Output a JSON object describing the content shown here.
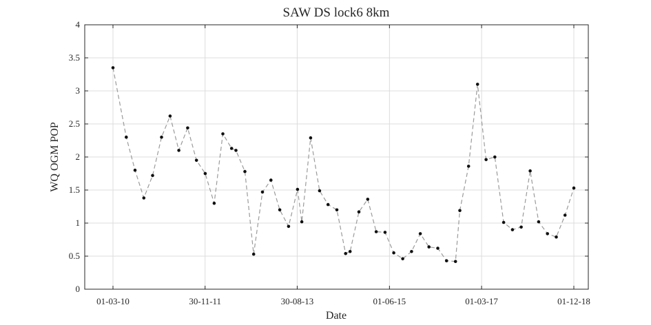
{
  "chart_data": {
    "type": "line",
    "title": "SAW DS lock6 8km",
    "xlabel": "Date",
    "ylabel": "WQ OGM POP",
    "xlim": [
      "01-03-10",
      "01-12-18"
    ],
    "ylim": [
      0,
      4
    ],
    "grid": true,
    "x_ticks": [
      "01-03-10",
      "30-11-11",
      "30-08-13",
      "01-06-15",
      "01-03-17",
      "01-12-18"
    ],
    "y_ticks": [
      "0",
      "0.5",
      "1",
      "1.5",
      "2",
      "2.5",
      "3",
      "3.5",
      "4"
    ],
    "marker_color": "#111111",
    "line_color": "#9a9a9a",
    "series": [
      {
        "x": [
          "01-03-10",
          "01-06-10",
          "01-08-10",
          "01-10-10",
          "01-12-10",
          "01-02-11",
          "01-04-11",
          "01-06-11",
          "01-08-11",
          "01-10-11",
          "01-12-11",
          "01-02-12",
          "01-04-12",
          "01-06-12",
          "01-07-12",
          "01-09-12",
          "01-11-12",
          "01-01-13",
          "01-03-13",
          "01-05-13",
          "01-07-13",
          "01-09-13",
          "01-10-13",
          "01-12-13",
          "01-02-14",
          "01-04-14",
          "01-06-14",
          "01-08-14",
          "01-09-14",
          "01-11-14",
          "01-01-15",
          "01-03-15",
          "01-05-15",
          "01-07-15",
          "01-09-15",
          "01-11-15",
          "01-01-16",
          "01-03-16",
          "01-05-16",
          "01-07-16",
          "01-09-16",
          "01-10-16",
          "01-12-16",
          "01-02-17",
          "01-04-17",
          "01-06-17",
          "01-08-17",
          "01-10-17",
          "01-12-17",
          "01-02-18",
          "01-04-18",
          "01-06-18",
          "01-08-18",
          "01-10-18",
          "01-12-18"
        ],
        "y": [
          3.35,
          2.3,
          1.8,
          1.38,
          1.72,
          2.3,
          2.62,
          2.1,
          2.44,
          1.95,
          1.75,
          1.3,
          2.35,
          2.13,
          2.1,
          1.78,
          0.53,
          1.47,
          1.65,
          1.2,
          0.95,
          1.51,
          1.02,
          2.29,
          1.49,
          1.28,
          1.2,
          0.54,
          0.57,
          1.17,
          1.36,
          0.87,
          0.86,
          0.55,
          0.46,
          0.57,
          0.84,
          0.64,
          0.62,
          0.43,
          0.42,
          1.19,
          1.86,
          3.1,
          1.96,
          2.0,
          1.01,
          0.9,
          0.94,
          1.79,
          1.02,
          0.84,
          0.79,
          1.12,
          1.53
        ]
      }
    ]
  }
}
